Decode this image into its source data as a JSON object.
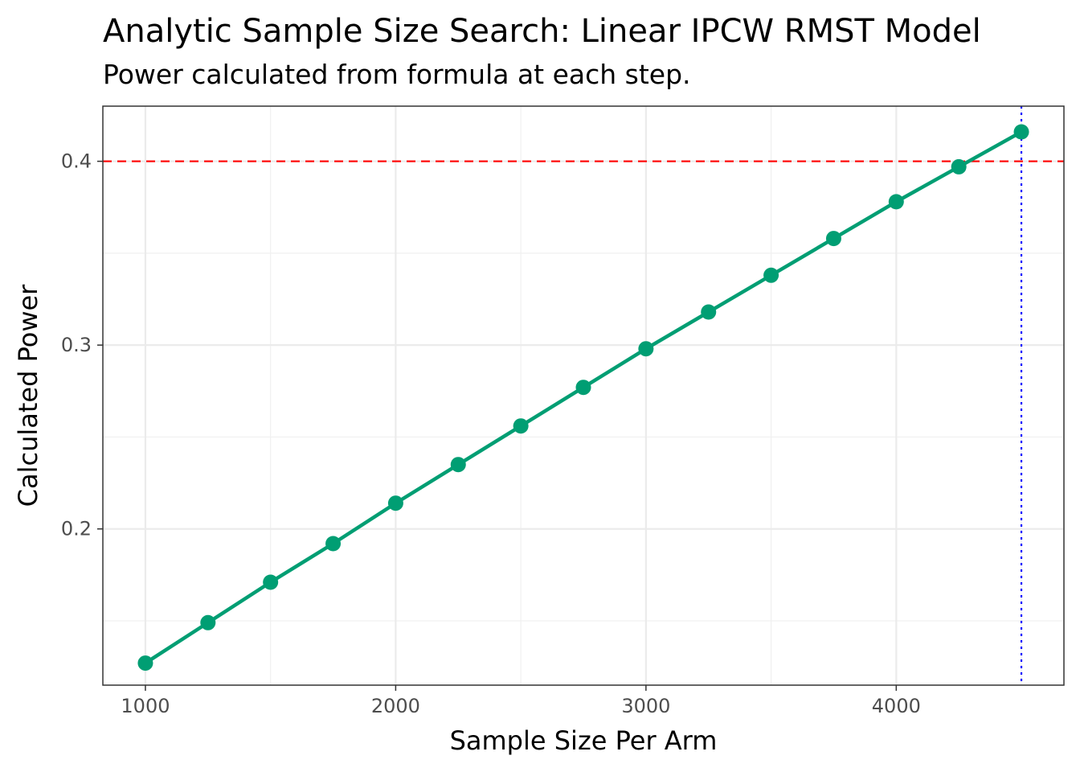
{
  "chart_data": {
    "type": "line",
    "title": "Analytic Sample Size Search: Linear IPCW RMST Model",
    "subtitle": "Power calculated from formula at each step.",
    "xlabel": "Sample Size Per Arm",
    "ylabel": "Calculated Power",
    "xlim": [
      830,
      4670
    ],
    "ylim": [
      0.115,
      0.43
    ],
    "x_ticks": [
      1000,
      2000,
      3000,
      4000
    ],
    "x_tick_labels": [
      "1000",
      "2000",
      "3000",
      "4000"
    ],
    "y_ticks": [
      0.2,
      0.3,
      0.4
    ],
    "y_tick_labels": [
      "0.2",
      "0.3",
      "0.4"
    ],
    "grid": true,
    "series": [
      {
        "x": [
          1000,
          1250,
          1500,
          1750,
          2000,
          2250,
          2500,
          2750,
          3000,
          3250,
          3500,
          3750,
          4000,
          4250,
          4500
        ],
        "values": [
          0.127,
          0.149,
          0.171,
          0.192,
          0.214,
          0.235,
          0.256,
          0.277,
          0.298,
          0.318,
          0.338,
          0.358,
          0.378,
          0.397,
          0.416
        ],
        "color": "#009E73"
      }
    ],
    "reference_lines": [
      {
        "orientation": "horizontal",
        "value": 0.4,
        "style": "dashed",
        "color": "#FF0000"
      },
      {
        "orientation": "vertical",
        "value": 4500,
        "style": "dotted",
        "color": "#0000FF"
      }
    ]
  }
}
